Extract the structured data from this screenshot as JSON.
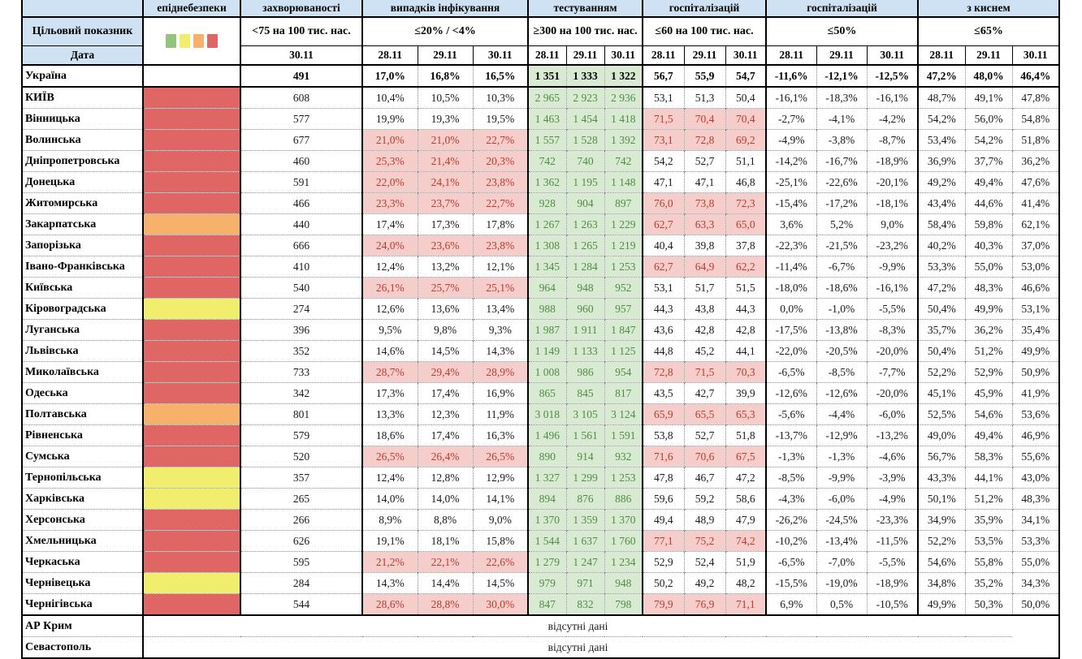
{
  "columns": {
    "corner": "",
    "target_label": "Цільовий показник",
    "date_label": "Дата",
    "legend_colors": [
      "#93c47d",
      "#f2ee6d",
      "#f6b26b",
      "#e06666"
    ],
    "legend_names": [
      "green",
      "yellow",
      "orange",
      "red"
    ],
    "groups": [
      {
        "title": "епіднебезпеки",
        "target": "",
        "dates": []
      },
      {
        "title": "захворюваності",
        "target": "<75 на 100 тис. нас.",
        "dates": [
          "30.11"
        ]
      },
      {
        "title": "випадків інфікування",
        "target": "≤20% / <4%",
        "dates": [
          "28.11",
          "29.11",
          "30.11"
        ]
      },
      {
        "title": "тестуванням",
        "target": "≥300 на 100 тис. нас.",
        "dates": [
          "28.11",
          "29.11",
          "30.11"
        ]
      },
      {
        "title": "госпіталізацій",
        "target": "≤60 на 100 тис. нас.",
        "dates": [
          "28.11",
          "29.11",
          "30.11"
        ]
      },
      {
        "title": "госпіталізацій",
        "target": "≤50%",
        "dates": [
          "28.11",
          "29.11",
          "30.11"
        ]
      },
      {
        "title": "з киснем",
        "target": "≤65%",
        "dates": [
          "28.11",
          "29.11",
          "30.11"
        ]
      }
    ]
  },
  "colors": {
    "header_bg": "#cfe2f3",
    "danger_red": "#e06666",
    "danger_orange": "#f6b26b",
    "danger_yellow": "#f2ee6d",
    "danger_green": "#93c47d",
    "bad_bg": "#f5cdcb",
    "bad_text": "#c0392b",
    "good_bg": "#d9ead3",
    "good_text": "#4e8c41"
  },
  "rows": [
    {
      "name": "Україна",
      "bold": true,
      "danger": "",
      "sick": "491",
      "inf": [
        "17,0%",
        "16,8%",
        "16,5%"
      ],
      "inf_hl": false,
      "test": [
        "1 351",
        "1 333",
        "1 322"
      ],
      "hosp": [
        "56,7",
        "55,9",
        "54,7"
      ],
      "hosp_hl": false,
      "dyn": [
        "-11,6%",
        "-12,1%",
        "-12,5%"
      ],
      "oxy": [
        "47,2%",
        "48,0%",
        "46,4%"
      ]
    },
    {
      "name": "КИЇВ",
      "bold": false,
      "danger": "red",
      "sick": "608",
      "inf": [
        "10,4%",
        "10,5%",
        "10,3%"
      ],
      "inf_hl": false,
      "test": [
        "2 965",
        "2 923",
        "2 936"
      ],
      "hosp": [
        "53,1",
        "51,3",
        "50,4"
      ],
      "hosp_hl": false,
      "dyn": [
        "-16,1%",
        "-18,3%",
        "-16,1%"
      ],
      "oxy": [
        "48,7%",
        "49,1%",
        "47,8%"
      ]
    },
    {
      "name": "Вінницька",
      "bold": false,
      "danger": "red",
      "sick": "577",
      "inf": [
        "19,9%",
        "19,3%",
        "19,5%"
      ],
      "inf_hl": false,
      "test": [
        "1 463",
        "1 454",
        "1 418"
      ],
      "hosp": [
        "71,5",
        "70,4",
        "70,4"
      ],
      "hosp_hl": true,
      "dyn": [
        "-2,7%",
        "-4,1%",
        "-4,2%"
      ],
      "oxy": [
        "54,2%",
        "56,0%",
        "54,8%"
      ]
    },
    {
      "name": "Волинська",
      "bold": false,
      "danger": "red",
      "sick": "677",
      "inf": [
        "21,0%",
        "21,0%",
        "22,7%"
      ],
      "inf_hl": true,
      "test": [
        "1 557",
        "1 528",
        "1 392"
      ],
      "hosp": [
        "73,1",
        "72,8",
        "69,2"
      ],
      "hosp_hl": true,
      "dyn": [
        "-4,9%",
        "-3,8%",
        "-8,7%"
      ],
      "oxy": [
        "53,4%",
        "54,2%",
        "51,8%"
      ]
    },
    {
      "name": "Дніпропетровська",
      "bold": false,
      "danger": "red",
      "sick": "460",
      "inf": [
        "25,3%",
        "21,4%",
        "20,3%"
      ],
      "inf_hl": true,
      "test": [
        "742",
        "740",
        "742"
      ],
      "hosp": [
        "54,2",
        "52,7",
        "51,1"
      ],
      "hosp_hl": false,
      "dyn": [
        "-14,2%",
        "-16,7%",
        "-18,9%"
      ],
      "oxy": [
        "36,9%",
        "37,7%",
        "36,2%"
      ]
    },
    {
      "name": "Донецька",
      "bold": false,
      "danger": "red",
      "sick": "591",
      "inf": [
        "22,0%",
        "24,1%",
        "23,8%"
      ],
      "inf_hl": true,
      "test": [
        "1 362",
        "1 195",
        "1 148"
      ],
      "hosp": [
        "47,1",
        "47,1",
        "46,8"
      ],
      "hosp_hl": false,
      "dyn": [
        "-25,1%",
        "-22,6%",
        "-20,1%"
      ],
      "oxy": [
        "49,2%",
        "49,4%",
        "47,6%"
      ]
    },
    {
      "name": "Житомирська",
      "bold": false,
      "danger": "red",
      "sick": "466",
      "inf": [
        "23,3%",
        "23,7%",
        "22,7%"
      ],
      "inf_hl": true,
      "test": [
        "928",
        "904",
        "897"
      ],
      "hosp": [
        "76,0",
        "73,8",
        "72,3"
      ],
      "hosp_hl": true,
      "dyn": [
        "-15,4%",
        "-17,2%",
        "-18,1%"
      ],
      "oxy": [
        "43,4%",
        "44,6%",
        "41,4%"
      ]
    },
    {
      "name": "Закарпатська",
      "bold": false,
      "danger": "orange",
      "sick": "440",
      "inf": [
        "17,4%",
        "17,3%",
        "17,8%"
      ],
      "inf_hl": false,
      "test": [
        "1 267",
        "1 263",
        "1 229"
      ],
      "hosp": [
        "62,7",
        "63,3",
        "65,0"
      ],
      "hosp_hl": true,
      "dyn": [
        "3,6%",
        "5,2%",
        "9,0%"
      ],
      "oxy": [
        "58,4%",
        "59,8%",
        "62,1%"
      ]
    },
    {
      "name": "Запорізька",
      "bold": false,
      "danger": "red",
      "sick": "666",
      "inf": [
        "24,0%",
        "23,6%",
        "23,8%"
      ],
      "inf_hl": true,
      "test": [
        "1 308",
        "1 265",
        "1 219"
      ],
      "hosp": [
        "40,4",
        "39,8",
        "37,8"
      ],
      "hosp_hl": false,
      "dyn": [
        "-22,3%",
        "-21,5%",
        "-23,2%"
      ],
      "oxy": [
        "40,2%",
        "40,3%",
        "37,0%"
      ]
    },
    {
      "name": "Івано-Франківська",
      "bold": false,
      "danger": "red",
      "sick": "410",
      "inf": [
        "12,4%",
        "13,2%",
        "12,1%"
      ],
      "inf_hl": false,
      "test": [
        "1 345",
        "1 284",
        "1 253"
      ],
      "hosp": [
        "62,7",
        "64,9",
        "62,2"
      ],
      "hosp_hl": true,
      "dyn": [
        "-11,4%",
        "-6,7%",
        "-9,9%"
      ],
      "oxy": [
        "53,3%",
        "55,0%",
        "53,0%"
      ]
    },
    {
      "name": "Київська",
      "bold": false,
      "danger": "red",
      "sick": "540",
      "inf": [
        "26,1%",
        "25,7%",
        "25,1%"
      ],
      "inf_hl": true,
      "test": [
        "964",
        "948",
        "952"
      ],
      "hosp": [
        "53,1",
        "51,7",
        "51,5"
      ],
      "hosp_hl": false,
      "dyn": [
        "-18,0%",
        "-18,6%",
        "-16,1%"
      ],
      "oxy": [
        "47,2%",
        "48,3%",
        "46,6%"
      ]
    },
    {
      "name": "Кіровоградська",
      "bold": false,
      "danger": "yellow",
      "sick": "274",
      "inf": [
        "12,6%",
        "13,6%",
        "13,4%"
      ],
      "inf_hl": false,
      "test": [
        "988",
        "960",
        "957"
      ],
      "hosp": [
        "44,3",
        "43,8",
        "44,3"
      ],
      "hosp_hl": false,
      "dyn": [
        "0,0%",
        "-1,0%",
        "-5,5%"
      ],
      "oxy": [
        "50,4%",
        "49,9%",
        "53,1%"
      ]
    },
    {
      "name": "Луганська",
      "bold": false,
      "danger": "red",
      "sick": "396",
      "inf": [
        "9,5%",
        "9,8%",
        "9,3%"
      ],
      "inf_hl": false,
      "test": [
        "1 987",
        "1 911",
        "1 847"
      ],
      "hosp": [
        "43,6",
        "42,8",
        "42,8"
      ],
      "hosp_hl": false,
      "dyn": [
        "-17,5%",
        "-13,8%",
        "-8,3%"
      ],
      "oxy": [
        "35,7%",
        "36,2%",
        "35,4%"
      ]
    },
    {
      "name": "Львівська",
      "bold": false,
      "danger": "red",
      "sick": "352",
      "inf": [
        "14,6%",
        "14,5%",
        "14,3%"
      ],
      "inf_hl": false,
      "test": [
        "1 149",
        "1 133",
        "1 125"
      ],
      "hosp": [
        "44,8",
        "45,2",
        "44,1"
      ],
      "hosp_hl": false,
      "dyn": [
        "-22,0%",
        "-20,5%",
        "-20,0%"
      ],
      "oxy": [
        "50,4%",
        "51,2%",
        "49,9%"
      ]
    },
    {
      "name": "Миколаївська",
      "bold": false,
      "danger": "red",
      "sick": "733",
      "inf": [
        "28,7%",
        "29,4%",
        "28,9%"
      ],
      "inf_hl": true,
      "test": [
        "1 008",
        "986",
        "954"
      ],
      "hosp": [
        "72,8",
        "71,5",
        "70,3"
      ],
      "hosp_hl": true,
      "dyn": [
        "-6,5%",
        "-8,5%",
        "-7,7%"
      ],
      "oxy": [
        "52,2%",
        "52,9%",
        "50,9%"
      ]
    },
    {
      "name": "Одеська",
      "bold": false,
      "danger": "red",
      "sick": "342",
      "inf": [
        "17,3%",
        "17,4%",
        "16,9%"
      ],
      "inf_hl": false,
      "test": [
        "865",
        "845",
        "817"
      ],
      "hosp": [
        "43,5",
        "42,7",
        "39,9"
      ],
      "hosp_hl": false,
      "dyn": [
        "-12,6%",
        "-12,6%",
        "-20,0%"
      ],
      "oxy": [
        "45,1%",
        "45,9%",
        "41,9%"
      ]
    },
    {
      "name": "Полтавська",
      "bold": false,
      "danger": "orange",
      "sick": "801",
      "inf": [
        "13,3%",
        "12,3%",
        "11,9%"
      ],
      "inf_hl": false,
      "test": [
        "3 018",
        "3 105",
        "3 124"
      ],
      "hosp": [
        "65,9",
        "65,5",
        "65,3"
      ],
      "hosp_hl": true,
      "dyn": [
        "-5,6%",
        "-4,4%",
        "-6,0%"
      ],
      "oxy": [
        "52,5%",
        "54,6%",
        "53,6%"
      ]
    },
    {
      "name": "Рівненська",
      "bold": false,
      "danger": "red",
      "sick": "579",
      "inf": [
        "18,6%",
        "17,4%",
        "16,3%"
      ],
      "inf_hl": false,
      "test": [
        "1 496",
        "1 561",
        "1 591"
      ],
      "hosp": [
        "53,8",
        "52,7",
        "51,8"
      ],
      "hosp_hl": false,
      "dyn": [
        "-13,7%",
        "-12,9%",
        "-13,2%"
      ],
      "oxy": [
        "49,0%",
        "49,4%",
        "46,9%"
      ]
    },
    {
      "name": "Сумська",
      "bold": false,
      "danger": "red",
      "sick": "520",
      "inf": [
        "26,5%",
        "26,4%",
        "26,5%"
      ],
      "inf_hl": true,
      "test": [
        "890",
        "914",
        "932"
      ],
      "hosp": [
        "71,6",
        "70,6",
        "67,5"
      ],
      "hosp_hl": true,
      "dyn": [
        "-1,3%",
        "-1,3%",
        "-4,6%"
      ],
      "oxy": [
        "56,7%",
        "58,3%",
        "55,6%"
      ]
    },
    {
      "name": "Тернопільська",
      "bold": false,
      "danger": "yellow",
      "sick": "357",
      "inf": [
        "12,4%",
        "12,8%",
        "12,9%"
      ],
      "inf_hl": false,
      "test": [
        "1 327",
        "1 299",
        "1 253"
      ],
      "hosp": [
        "47,8",
        "46,7",
        "47,2"
      ],
      "hosp_hl": false,
      "dyn": [
        "-8,5%",
        "-9,9%",
        "-3,9%"
      ],
      "oxy": [
        "43,3%",
        "44,1%",
        "43,0%"
      ]
    },
    {
      "name": "Харківська",
      "bold": false,
      "danger": "yellow",
      "sick": "265",
      "inf": [
        "14,0%",
        "14,0%",
        "14,1%"
      ],
      "inf_hl": false,
      "test": [
        "894",
        "876",
        "886"
      ],
      "hosp": [
        "59,6",
        "59,2",
        "58,6"
      ],
      "hosp_hl": false,
      "dyn": [
        "-4,3%",
        "-6,0%",
        "-4,9%"
      ],
      "oxy": [
        "50,1%",
        "51,2%",
        "48,3%"
      ]
    },
    {
      "name": "Херсонська",
      "bold": false,
      "danger": "red",
      "sick": "266",
      "inf": [
        "8,9%",
        "8,8%",
        "9,0%"
      ],
      "inf_hl": false,
      "test": [
        "1 370",
        "1 359",
        "1 370"
      ],
      "hosp": [
        "49,4",
        "48,9",
        "47,9"
      ],
      "hosp_hl": false,
      "dyn": [
        "-26,2%",
        "-24,5%",
        "-23,3%"
      ],
      "oxy": [
        "34,9%",
        "35,9%",
        "34,1%"
      ]
    },
    {
      "name": "Хмельницька",
      "bold": false,
      "danger": "red",
      "sick": "626",
      "inf": [
        "19,1%",
        "18,1%",
        "15,8%"
      ],
      "inf_hl": false,
      "test": [
        "1 544",
        "1 637",
        "1 760"
      ],
      "hosp": [
        "77,1",
        "75,2",
        "74,2"
      ],
      "hosp_hl": true,
      "dyn": [
        "-10,2%",
        "-13,4%",
        "-11,5%"
      ],
      "oxy": [
        "52,2%",
        "53,5%",
        "53,3%"
      ]
    },
    {
      "name": "Черкаська",
      "bold": false,
      "danger": "red",
      "sick": "595",
      "inf": [
        "21,2%",
        "22,1%",
        "22,6%"
      ],
      "inf_hl": true,
      "test": [
        "1 279",
        "1 247",
        "1 234"
      ],
      "hosp": [
        "52,9",
        "52,4",
        "51,9"
      ],
      "hosp_hl": false,
      "dyn": [
        "-6,5%",
        "-7,0%",
        "-5,5%"
      ],
      "oxy": [
        "54,6%",
        "55,8%",
        "55,0%"
      ]
    },
    {
      "name": "Чернівецька",
      "bold": false,
      "danger": "yellow",
      "sick": "284",
      "inf": [
        "14,3%",
        "14,4%",
        "14,5%"
      ],
      "inf_hl": false,
      "test": [
        "979",
        "971",
        "948"
      ],
      "hosp": [
        "50,2",
        "49,2",
        "48,2"
      ],
      "hosp_hl": false,
      "dyn": [
        "-15,5%",
        "-19,0%",
        "-18,9%"
      ],
      "oxy": [
        "34,8%",
        "35,2%",
        "34,3%"
      ]
    },
    {
      "name": "Чернігівська",
      "bold": false,
      "danger": "red",
      "sick": "544",
      "inf": [
        "28,6%",
        "28,8%",
        "30,0%"
      ],
      "inf_hl": true,
      "test": [
        "847",
        "832",
        "798"
      ],
      "hosp": [
        "79,9",
        "76,9",
        "71,1"
      ],
      "hosp_hl": true,
      "dyn": [
        "6,9%",
        "0,5%",
        "-10,5%"
      ],
      "oxy": [
        "49,9%",
        "50,3%",
        "50,0%"
      ]
    }
  ],
  "no_data": [
    {
      "name": "АР Крим",
      "text": "відсутні дані"
    },
    {
      "name": "Севастополь",
      "text": "відсутні дані"
    }
  ]
}
